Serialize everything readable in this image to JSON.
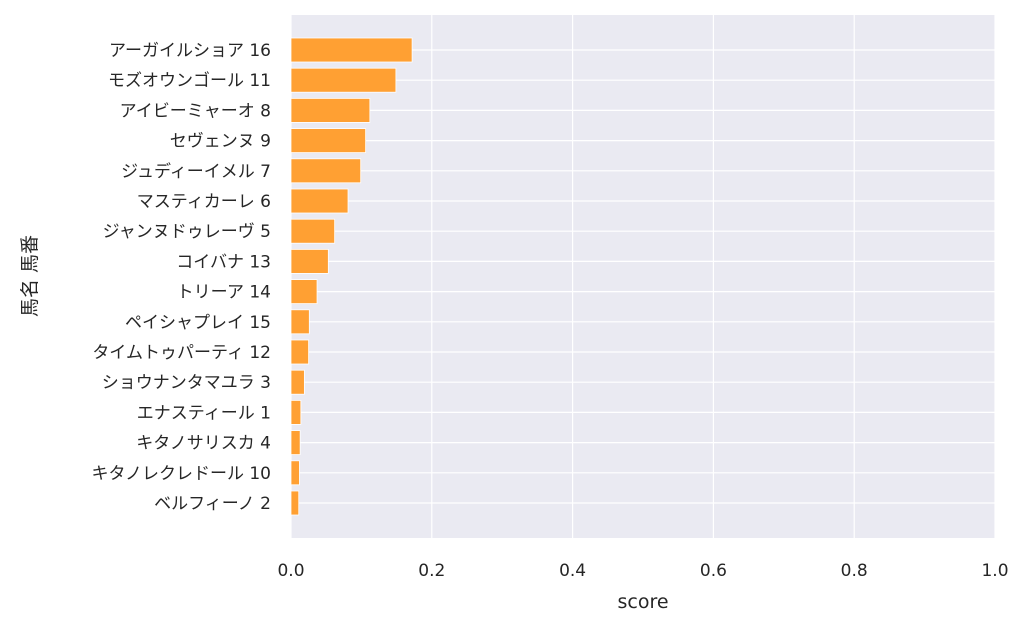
{
  "chart_data": {
    "type": "bar",
    "orientation": "horizontal",
    "xlabel": "score",
    "ylabel": "馬名 馬番",
    "xlim": [
      0.0,
      1.0
    ],
    "xticks": [
      "0.0",
      "0.2",
      "0.4",
      "0.6",
      "0.8",
      "1.0"
    ],
    "xtick_values": [
      0.0,
      0.2,
      0.4,
      0.6,
      0.8,
      1.0
    ],
    "grid": true,
    "bar_color": "#ffa033",
    "background_color": "#eaeaf2",
    "categories": [
      "アーガイルショア 16",
      "モズオウンゴール 11",
      "アイビーミャーオ 8",
      "セヴェンヌ 9",
      "ジュディーイメル 7",
      "マスティカーレ 6",
      "ジャンヌドゥレーヴ 5",
      "コイバナ 13",
      "トリーア 14",
      "ペイシャプレイ 15",
      "タイムトゥパーティ 12",
      "ショウナンタマユラ 3",
      "エナスティール 1",
      "キタノサリスカ 4",
      "キタノレクレドール 10",
      "ベルフィーノ 2"
    ],
    "values": [
      0.172,
      0.149,
      0.112,
      0.106,
      0.099,
      0.081,
      0.062,
      0.053,
      0.037,
      0.026,
      0.025,
      0.019,
      0.014,
      0.013,
      0.012,
      0.011
    ]
  }
}
